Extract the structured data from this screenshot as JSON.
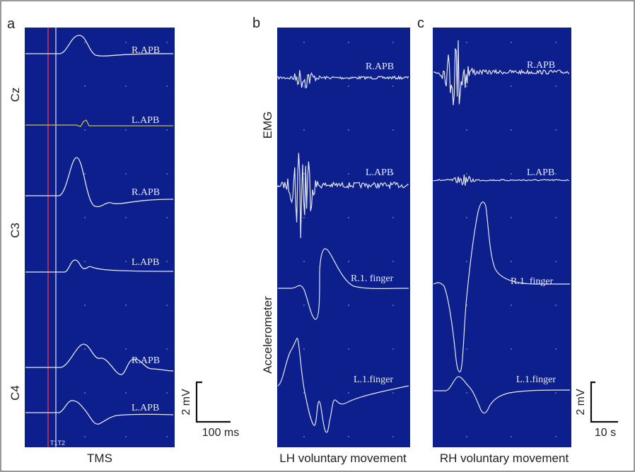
{
  "panels": [
    {
      "letter": "a",
      "caption": "TMS",
      "sites": [
        "Cz",
        "C3",
        "C4"
      ],
      "traces": [
        "R.APB",
        "L.APB",
        "R.APB",
        "L.APB",
        "R.APB",
        "L.APB"
      ],
      "markers": "T1T2"
    },
    {
      "letter": "b",
      "caption": "LH voluntary movement",
      "group_labels": [
        "EMG",
        "Accelerometer"
      ],
      "traces": [
        "R.APB",
        "L.APB",
        "R.1. finger",
        "L.1.finger"
      ]
    },
    {
      "letter": "c",
      "caption": "RH voluntary movement",
      "traces": [
        "R.APB",
        "L.APB",
        "R.1. finger",
        "L.1.finger"
      ]
    }
  ],
  "scalebars": [
    {
      "vertical": "2 mV",
      "horizontal": "100 ms"
    },
    {
      "vertical": "2 mV",
      "horizontal": "10 s"
    }
  ],
  "colors": {
    "panel_bg": "#0c1f8c",
    "trace": "#e6e8f2",
    "trace_highlight": "#c8c040",
    "marker_t1": "#e03040",
    "marker_t2": "#e6e8f2"
  }
}
